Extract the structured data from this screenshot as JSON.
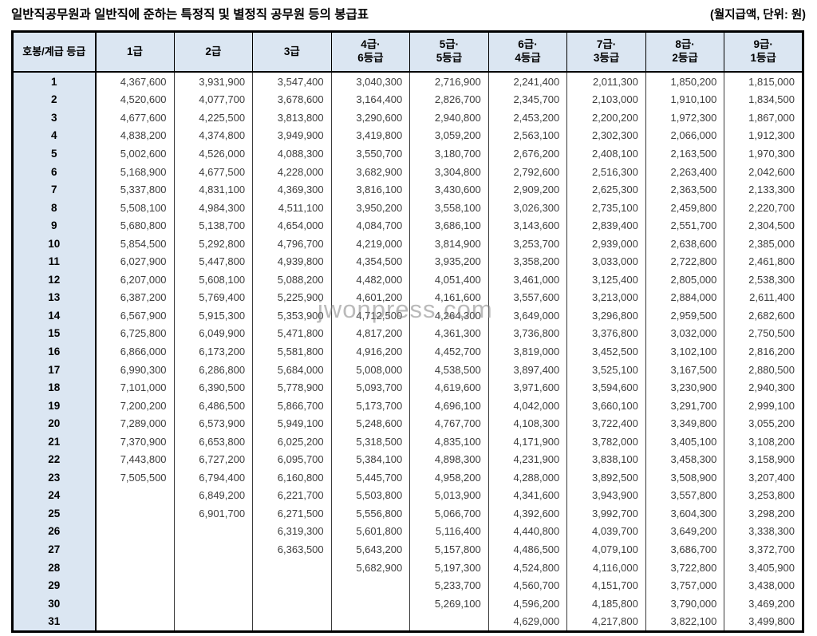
{
  "title": "일반직공무원과 일반직에 준하는 특정직 및 별정직 공무원 등의 봉급표",
  "unit_note": "(월지급액, 단위: 원)",
  "watermark": "jwonpress.com",
  "table": {
    "row_header_label": "호봉/계급 등급",
    "columns": [
      "1급",
      "2급",
      "3급",
      "4급·\n6등급",
      "5급·\n5등급",
      "6급·\n4등급",
      "7급·\n3등급",
      "8급·\n2등급",
      "9급·\n1등급"
    ],
    "rows": [
      {
        "step": "1",
        "values": [
          "4,367,600",
          "3,931,900",
          "3,547,400",
          "3,040,300",
          "2,716,900",
          "2,241,400",
          "2,011,300",
          "1,850,200",
          "1,815,000"
        ]
      },
      {
        "step": "2",
        "values": [
          "4,520,600",
          "4,077,700",
          "3,678,600",
          "3,164,400",
          "2,826,700",
          "2,345,700",
          "2,103,000",
          "1,910,100",
          "1,834,500"
        ]
      },
      {
        "step": "3",
        "values": [
          "4,677,600",
          "4,225,500",
          "3,813,800",
          "3,290,600",
          "2,940,800",
          "2,453,200",
          "2,200,200",
          "1,972,300",
          "1,867,000"
        ]
      },
      {
        "step": "4",
        "values": [
          "4,838,200",
          "4,374,800",
          "3,949,900",
          "3,419,800",
          "3,059,200",
          "2,563,100",
          "2,302,300",
          "2,066,000",
          "1,912,300"
        ]
      },
      {
        "step": "5",
        "values": [
          "5,002,600",
          "4,526,000",
          "4,088,300",
          "3,550,700",
          "3,180,700",
          "2,676,200",
          "2,408,100",
          "2,163,500",
          "1,970,300"
        ]
      },
      {
        "step": "6",
        "values": [
          "5,168,900",
          "4,677,500",
          "4,228,000",
          "3,682,900",
          "3,304,800",
          "2,792,600",
          "2,516,300",
          "2,263,400",
          "2,042,600"
        ]
      },
      {
        "step": "7",
        "values": [
          "5,337,800",
          "4,831,100",
          "4,369,300",
          "3,816,100",
          "3,430,600",
          "2,909,200",
          "2,625,300",
          "2,363,500",
          "2,133,300"
        ]
      },
      {
        "step": "8",
        "values": [
          "5,508,100",
          "4,984,300",
          "4,511,100",
          "3,950,200",
          "3,558,100",
          "3,026,300",
          "2,735,100",
          "2,459,800",
          "2,220,700"
        ]
      },
      {
        "step": "9",
        "values": [
          "5,680,800",
          "5,138,700",
          "4,654,000",
          "4,084,700",
          "3,686,100",
          "3,143,600",
          "2,839,400",
          "2,551,700",
          "2,304,500"
        ]
      },
      {
        "step": "10",
        "values": [
          "5,854,500",
          "5,292,800",
          "4,796,700",
          "4,219,000",
          "3,814,900",
          "3,253,700",
          "2,939,000",
          "2,638,600",
          "2,385,000"
        ]
      },
      {
        "step": "11",
        "values": [
          "6,027,900",
          "5,447,800",
          "4,939,800",
          "4,354,500",
          "3,935,200",
          "3,358,200",
          "3,033,000",
          "2,722,800",
          "2,461,800"
        ]
      },
      {
        "step": "12",
        "values": [
          "6,207,000",
          "5,608,100",
          "5,088,200",
          "4,482,000",
          "4,051,400",
          "3,461,000",
          "3,125,400",
          "2,805,000",
          "2,538,300"
        ]
      },
      {
        "step": "13",
        "values": [
          "6,387,200",
          "5,769,400",
          "5,225,900",
          "4,601,200",
          "4,161,600",
          "3,557,600",
          "3,213,000",
          "2,884,000",
          "2,611,400"
        ]
      },
      {
        "step": "14",
        "values": [
          "6,567,900",
          "5,915,300",
          "5,353,900",
          "4,712,500",
          "4,264,300",
          "3,649,000",
          "3,296,800",
          "2,959,500",
          "2,682,600"
        ]
      },
      {
        "step": "15",
        "values": [
          "6,725,800",
          "6,049,900",
          "5,471,800",
          "4,817,200",
          "4,361,300",
          "3,736,800",
          "3,376,800",
          "3,032,000",
          "2,750,500"
        ]
      },
      {
        "step": "16",
        "values": [
          "6,866,000",
          "6,173,200",
          "5,581,800",
          "4,916,200",
          "4,452,700",
          "3,819,000",
          "3,452,500",
          "3,102,100",
          "2,816,200"
        ]
      },
      {
        "step": "17",
        "values": [
          "6,990,300",
          "6,286,800",
          "5,684,000",
          "5,008,000",
          "4,538,500",
          "3,897,400",
          "3,525,100",
          "3,167,500",
          "2,880,500"
        ]
      },
      {
        "step": "18",
        "values": [
          "7,101,000",
          "6,390,500",
          "5,778,900",
          "5,093,700",
          "4,619,600",
          "3,971,600",
          "3,594,600",
          "3,230,900",
          "2,940,300"
        ]
      },
      {
        "step": "19",
        "values": [
          "7,200,200",
          "6,486,500",
          "5,866,700",
          "5,173,700",
          "4,696,100",
          "4,042,000",
          "3,660,100",
          "3,291,700",
          "2,999,100"
        ]
      },
      {
        "step": "20",
        "values": [
          "7,289,000",
          "6,573,900",
          "5,949,100",
          "5,248,600",
          "4,767,700",
          "4,108,300",
          "3,722,400",
          "3,349,800",
          "3,055,200"
        ]
      },
      {
        "step": "21",
        "values": [
          "7,370,900",
          "6,653,800",
          "6,025,200",
          "5,318,500",
          "4,835,100",
          "4,171,900",
          "3,782,000",
          "3,405,100",
          "3,108,200"
        ]
      },
      {
        "step": "22",
        "values": [
          "7,443,800",
          "6,727,200",
          "6,095,700",
          "5,384,100",
          "4,898,300",
          "4,231,900",
          "3,838,100",
          "3,458,300",
          "3,158,900"
        ]
      },
      {
        "step": "23",
        "values": [
          "7,505,500",
          "6,794,400",
          "6,160,800",
          "5,445,700",
          "4,958,200",
          "4,288,000",
          "3,892,500",
          "3,508,900",
          "3,207,400"
        ]
      },
      {
        "step": "24",
        "values": [
          "",
          "6,849,200",
          "6,221,700",
          "5,503,800",
          "5,013,900",
          "4,341,600",
          "3,943,900",
          "3,557,800",
          "3,253,800"
        ]
      },
      {
        "step": "25",
        "values": [
          "",
          "6,901,700",
          "6,271,500",
          "5,556,800",
          "5,066,700",
          "4,392,600",
          "3,992,700",
          "3,604,300",
          "3,298,200"
        ]
      },
      {
        "step": "26",
        "values": [
          "",
          "",
          "6,319,300",
          "5,601,800",
          "5,116,400",
          "4,440,800",
          "4,039,700",
          "3,649,200",
          "3,338,300"
        ]
      },
      {
        "step": "27",
        "values": [
          "",
          "",
          "6,363,500",
          "5,643,200",
          "5,157,800",
          "4,486,500",
          "4,079,100",
          "3,686,700",
          "3,372,700"
        ]
      },
      {
        "step": "28",
        "values": [
          "",
          "",
          "",
          "5,682,900",
          "5,197,300",
          "4,524,800",
          "4,116,000",
          "3,722,800",
          "3,405,900"
        ]
      },
      {
        "step": "29",
        "values": [
          "",
          "",
          "",
          "",
          "5,233,700",
          "4,560,700",
          "4,151,700",
          "3,757,000",
          "3,438,000"
        ]
      },
      {
        "step": "30",
        "values": [
          "",
          "",
          "",
          "",
          "5,269,100",
          "4,596,200",
          "4,185,800",
          "3,790,000",
          "3,469,200"
        ]
      },
      {
        "step": "31",
        "values": [
          "",
          "",
          "",
          "",
          "",
          "4,629,000",
          "4,217,800",
          "3,822,100",
          "3,499,800"
        ]
      }
    ]
  }
}
